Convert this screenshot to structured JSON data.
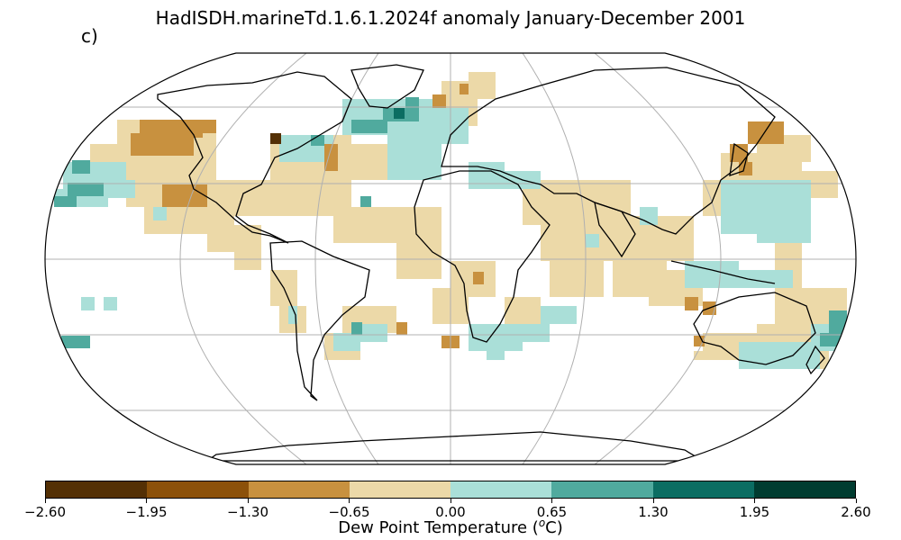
{
  "title": "HadISDH.marineTd.1.6.1.2024f anomaly January-December 2001",
  "panel_label": "c)",
  "colorbar": {
    "label_prefix": "Dew Point Temperature (",
    "label_unit_sup": "o",
    "label_suffix": "C)",
    "levels": [
      "-2.60",
      "-1.95",
      "-1.30",
      "-0.65",
      "0.00",
      "0.65",
      "1.30",
      "1.95",
      "2.60"
    ],
    "colors": [
      "#543005",
      "#8c510a",
      "#c8913f",
      "#ecd9a8",
      "#aadfd8",
      "#50aa9e",
      "#0b6d62",
      "#003c30"
    ]
  },
  "colors": {
    "land_outline": "#000000",
    "graticule": "#b0b0b0",
    "ocean_missing": "#ffffff"
  }
}
